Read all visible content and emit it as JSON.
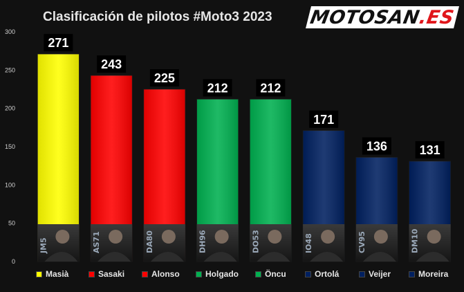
{
  "title": "Clasificación de pilotos #Moto3 2023",
  "logo": {
    "text_main": "MOTOSAN",
    "text_suffix": ".ES"
  },
  "chart_data": {
    "type": "bar",
    "title": "Clasificación de pilotos #Moto3 2023",
    "xlabel": "",
    "ylabel": "",
    "ylim": [
      0,
      300
    ],
    "yticks": [
      0,
      50,
      100,
      150,
      200,
      250,
      300
    ],
    "grid": false,
    "legend": "bottom",
    "categories": [
      "Masià",
      "Sasaki",
      "Alonso",
      "Holgado",
      "Öncu",
      "Ortolá",
      "Veijer",
      "Moreira"
    ],
    "values": [
      271,
      243,
      225,
      212,
      212,
      171,
      136,
      131
    ],
    "colors": [
      "#ffff00",
      "#ff0000",
      "#ff0000",
      "#00b050",
      "#00b050",
      "#002060",
      "#002060",
      "#002060"
    ],
    "rider_numbers": [
      "JM5",
      "AS71",
      "DA80",
      "DH96",
      "DO53",
      "IO48",
      "CV95",
      "DM10"
    ]
  },
  "legend": [
    {
      "label": "Masià",
      "color": "#ffff00"
    },
    {
      "label": "Sasaki",
      "color": "#ff0000"
    },
    {
      "label": "Alonso",
      "color": "#ff0000"
    },
    {
      "label": "Holgado",
      "color": "#00b050"
    },
    {
      "label": "Öncu",
      "color": "#00b050"
    },
    {
      "label": "Ortolá",
      "color": "#002060"
    },
    {
      "label": "Veijer",
      "color": "#002060"
    },
    {
      "label": "Moreira",
      "color": "#002060"
    }
  ]
}
